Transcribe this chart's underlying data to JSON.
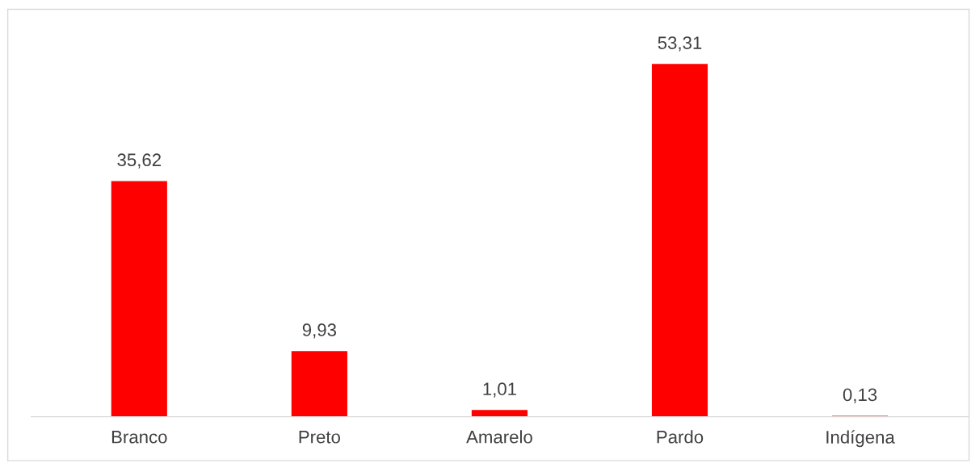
{
  "chart_data": {
    "type": "bar",
    "categories": [
      "Branco",
      "Preto",
      "Amarelo",
      "Pardo",
      "Indígena"
    ],
    "values": [
      35.62,
      9.93,
      1.01,
      53.31,
      0.13
    ],
    "value_labels": [
      "35,62",
      "9,93",
      "1,01",
      "53,31",
      "0,13"
    ],
    "color": "#ff0000",
    "grid": false,
    "legend": false
  }
}
